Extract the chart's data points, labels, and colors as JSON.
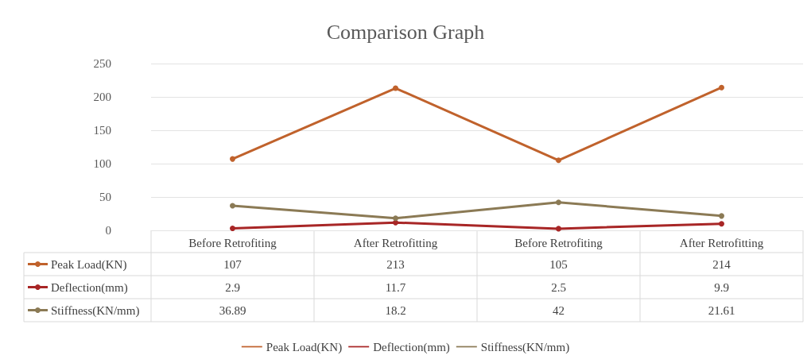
{
  "chart_data": {
    "type": "line",
    "title": "Comparison Graph",
    "categories": [
      "Before Retrofiting",
      "After Retrofitting",
      "Before Retrofiting",
      "After Retrofitting"
    ],
    "series": [
      {
        "name": "Peak Load(KN)",
        "color": "#c0622c",
        "values": [
          107,
          213,
          105,
          214
        ]
      },
      {
        "name": "Deflection(mm)",
        "color": "#a82626",
        "values": [
          2.9,
          11.7,
          2.5,
          9.9
        ]
      },
      {
        "name": "Stiffness(KN/mm)",
        "color": "#8b7a55",
        "values": [
          36.89,
          18.2,
          42,
          21.61
        ]
      }
    ],
    "ylim": [
      0,
      250
    ],
    "yticks": [
      0,
      50,
      100,
      150,
      200,
      250
    ],
    "grid": "y",
    "legend": "bottom",
    "marker": "circle",
    "line_style": "solid",
    "data_labels": true
  }
}
